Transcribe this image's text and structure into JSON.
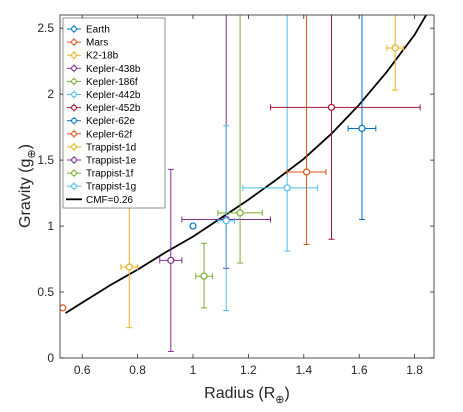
{
  "chart_data": {
    "type": "scatter",
    "title": "",
    "xlabel": {
      "text": "Radius (R",
      "sub": "⊕",
      "close": ")"
    },
    "ylabel": {
      "text": "Gravity (g",
      "sub": "⊕",
      "close": ")"
    },
    "xlim": [
      0.52,
      1.87
    ],
    "ylim": [
      0,
      2.6
    ],
    "xticks": [
      "0.6",
      "0.8",
      "1",
      "1.2",
      "1.4",
      "1.6",
      "1.8"
    ],
    "yticks": [
      "0",
      "0.5",
      "1",
      "1.5",
      "2",
      "2.5"
    ],
    "grid": false,
    "legend_position": "top-left",
    "series": [
      {
        "name": "Earth",
        "color": "#0072BD",
        "x": 1.0,
        "x_err": [
          0,
          0
        ],
        "y": 1.0,
        "y_err": [
          0,
          0
        ]
      },
      {
        "name": "Mars",
        "color": "#D95319",
        "x": 0.53,
        "x_err": [
          0,
          0
        ],
        "y": 0.38,
        "y_err": [
          0,
          0
        ]
      },
      {
        "name": "K2-18b",
        "color": "#EDB120",
        "x": 1.73,
        "x_err": [
          0.03,
          0.03
        ],
        "y": 2.35,
        "y_err": [
          0.32,
          0.35
        ]
      },
      {
        "name": "Kepler-438b",
        "color": "#7E2F8E",
        "x": 1.12,
        "x_err": [
          0.16,
          0.16
        ],
        "y": 1.05,
        "y_err": [
          0.37,
          1.6
        ]
      },
      {
        "name": "Kepler-186f",
        "color": "#77AC30",
        "x": 1.17,
        "x_err": [
          0.08,
          0.08
        ],
        "y": 1.1,
        "y_err": [
          0.38,
          1.55
        ]
      },
      {
        "name": "Kepler-442b",
        "color": "#4DBEEE",
        "x": 1.34,
        "x_err": [
          0.16,
          0.11
        ],
        "y": 1.29,
        "y_err": [
          0.48,
          1.4
        ]
      },
      {
        "name": "Kepler-452b",
        "color": "#A2142F",
        "x": 1.5,
        "x_err": [
          0.22,
          0.32
        ],
        "y": 1.9,
        "y_err": [
          1.0,
          0.8
        ]
      },
      {
        "name": "Kepler-62e",
        "color": "#0072BD",
        "x": 1.61,
        "x_err": [
          0.05,
          0.05
        ],
        "y": 1.74,
        "y_err": [
          0.69,
          0.9
        ]
      },
      {
        "name": "Kepler-62f",
        "color": "#D95319",
        "x": 1.41,
        "x_err": [
          0.07,
          0.07
        ],
        "y": 1.41,
        "y_err": [
          0.55,
          1.3
        ]
      },
      {
        "name": "Trappist-1d",
        "color": "#EDB120",
        "x": 0.77,
        "x_err": [
          0.03,
          0.03
        ],
        "y": 0.69,
        "y_err": [
          0.46,
          0.51
        ]
      },
      {
        "name": "Trappist-1e",
        "color": "#7E2F8E",
        "x": 0.92,
        "x_err": [
          0.04,
          0.04
        ],
        "y": 0.74,
        "y_err": [
          0.69,
          0.69
        ]
      },
      {
        "name": "Trappist-1f",
        "color": "#77AC30",
        "x": 1.04,
        "x_err": [
          0.03,
          0.03
        ],
        "y": 0.62,
        "y_err": [
          0.24,
          0.25
        ]
      },
      {
        "name": "Trappist-1g",
        "color": "#4DBEEE",
        "x": 1.12,
        "x_err": [
          0.03,
          0.03
        ],
        "y": 1.04,
        "y_err": [
          0.68,
          0.72
        ]
      }
    ],
    "curve": {
      "name": "CMF=0.26",
      "color": "#000000",
      "x": [
        0.54,
        0.6,
        0.7,
        0.8,
        0.9,
        1.0,
        1.1,
        1.2,
        1.3,
        1.4,
        1.5,
        1.6,
        1.7,
        1.8,
        1.85
      ],
      "y": [
        0.34,
        0.42,
        0.55,
        0.67,
        0.8,
        0.92,
        1.06,
        1.2,
        1.35,
        1.51,
        1.7,
        1.92,
        2.17,
        2.45,
        2.63
      ]
    }
  }
}
